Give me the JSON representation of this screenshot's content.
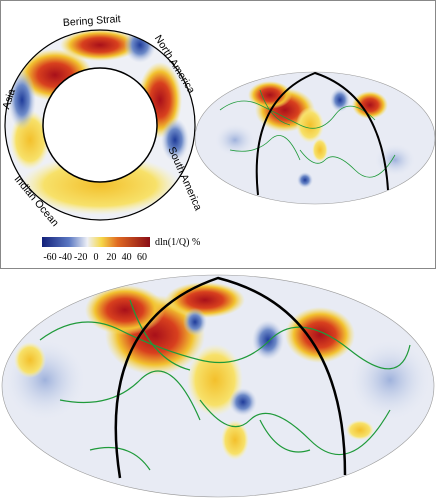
{
  "cross_section": {
    "labels": [
      "Bering Strait",
      "North America",
      "South America",
      "Indian Ocean",
      "Asia"
    ]
  },
  "colorbar": {
    "label": "dln(1/Q) %",
    "ticks": [
      "-60",
      "-40",
      "-20",
      "0",
      "20",
      "40",
      "60"
    ]
  }
}
